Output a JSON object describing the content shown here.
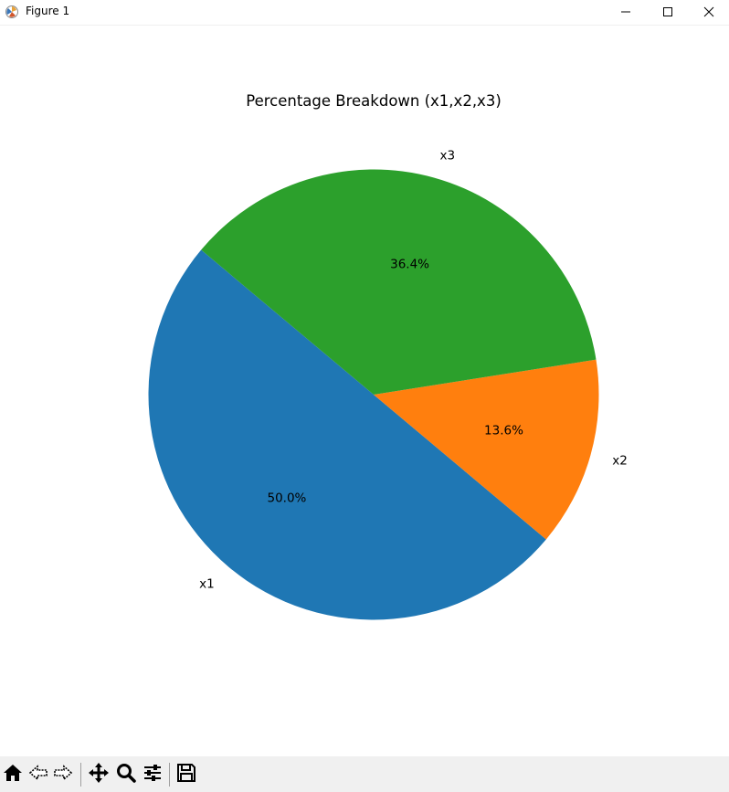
{
  "window": {
    "title": "Figure 1",
    "icons": {
      "app": "matplotlib-icon",
      "minimize": "minimize-icon",
      "maximize": "maximize-icon",
      "close": "close-icon"
    }
  },
  "toolbar": {
    "buttons": [
      "home-icon",
      "back-arrow-icon",
      "forward-arrow-icon",
      "pan-icon",
      "zoom-icon",
      "configure-subplots-icon",
      "save-icon"
    ]
  },
  "chart_data": {
    "type": "pie",
    "title": "Percentage Breakdown (x1,x2,x3)",
    "labels": [
      "x1",
      "x2",
      "x3"
    ],
    "values": [
      50.0,
      13.6,
      36.4
    ],
    "autopct_labels": [
      "50.0%",
      "13.6%",
      "36.4%"
    ],
    "colors": [
      "#1f77b4",
      "#ff7f0e",
      "#2ca02c"
    ],
    "start_angle_deg": 140,
    "direction": "counterclockwise"
  }
}
